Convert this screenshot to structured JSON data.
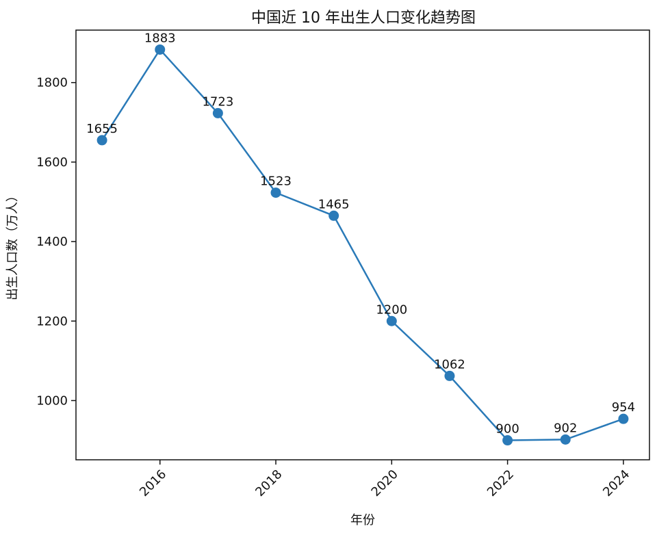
{
  "chart_data": {
    "type": "line",
    "title": "中国近 10 年出生人口变化趋势图",
    "xlabel": "年份",
    "ylabel": "出生人口数（万人）",
    "x": [
      2015,
      2016,
      2017,
      2018,
      2019,
      2020,
      2021,
      2022,
      2023,
      2024
    ],
    "series": [
      {
        "values": [
          1655,
          1883,
          1723,
          1523,
          1465,
          1200,
          1062,
          900,
          902,
          954
        ]
      }
    ],
    "data_labels": [
      "1655",
      "1883",
      "1723",
      "1523",
      "1465",
      "1200",
      "1062",
      "900",
      "902",
      "954"
    ],
    "xticks": [
      2016,
      2018,
      2020,
      2022,
      2024
    ],
    "xtick_labels": [
      "2016",
      "2018",
      "2020",
      "2022",
      "2024"
    ],
    "yticks": [
      1000,
      1200,
      1400,
      1600,
      1800
    ],
    "ytick_labels": [
      "1000",
      "1200",
      "1400",
      "1600",
      "1800"
    ],
    "xlim": [
      2014.55,
      2024.45
    ],
    "ylim": [
      851,
      1932
    ],
    "grid": false,
    "legend": "none",
    "colors": {
      "line": "#2a7ab8",
      "marker": "#2a7ab8",
      "axes": "#111111"
    }
  }
}
